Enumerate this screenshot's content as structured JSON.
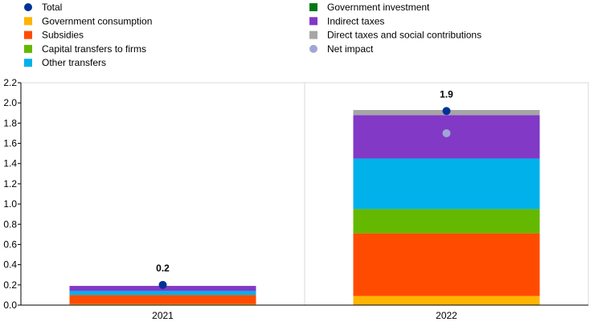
{
  "chart_data": {
    "type": "bar",
    "stacked": true,
    "categories": [
      "2021",
      "2022"
    ],
    "series": [
      {
        "name": "Government consumption",
        "color": "#FFB400",
        "values": [
          0.01,
          0.09
        ]
      },
      {
        "name": "Subsidies",
        "color": "#FF4B00",
        "values": [
          0.09,
          0.62
        ]
      },
      {
        "name": "Capital transfers to firms",
        "color": "#65B800",
        "values": [
          0.0,
          0.24
        ]
      },
      {
        "name": "Other transfers",
        "color": "#00B1EA",
        "values": [
          0.04,
          0.5
        ]
      },
      {
        "name": "Government investment",
        "color": "#007816",
        "values": [
          0.0,
          0.0
        ]
      },
      {
        "name": "Indirect taxes",
        "color": "#8139C6",
        "values": [
          0.05,
          0.43
        ]
      },
      {
        "name": "Direct taxes and social contributions",
        "color": "#A6A6A6",
        "values": [
          0.0,
          0.05
        ]
      }
    ],
    "points": [
      {
        "name": "Total",
        "color": "#003299",
        "values": [
          0.2,
          1.92
        ]
      },
      {
        "name": "Net impact",
        "color": "#A0A6D4",
        "values": [
          null,
          1.7
        ]
      }
    ],
    "data_labels": [
      "0.2",
      "1.9"
    ],
    "y_ticks": [
      "0.0",
      "0.2",
      "0.4",
      "0.6",
      "0.8",
      "1.0",
      "1.2",
      "1.4",
      "1.6",
      "1.8",
      "2.0",
      "2.2"
    ],
    "ylim": [
      0,
      2.2
    ],
    "legend": {
      "placement": "top",
      "columns": [
        [
          {
            "label": "Total",
            "marker": "circle",
            "color": "#003299"
          },
          {
            "label": "Government consumption",
            "marker": "square",
            "color": "#FFB400"
          },
          {
            "label": "Subsidies",
            "marker": "square",
            "color": "#FF4B00"
          },
          {
            "label": "Capital transfers to firms",
            "marker": "square",
            "color": "#65B800"
          },
          {
            "label": "Other transfers",
            "marker": "square",
            "color": "#00B1EA"
          }
        ],
        [
          {
            "label": "Government investment",
            "marker": "square",
            "color": "#007816"
          },
          {
            "label": "Indirect taxes",
            "marker": "square",
            "color": "#8139C6"
          },
          {
            "label": "Direct taxes and social contributions",
            "marker": "square",
            "color": "#A6A6A6"
          },
          {
            "label": "Net impact",
            "marker": "circle",
            "color": "#A0A6D4"
          }
        ]
      ]
    },
    "grid": false
  }
}
